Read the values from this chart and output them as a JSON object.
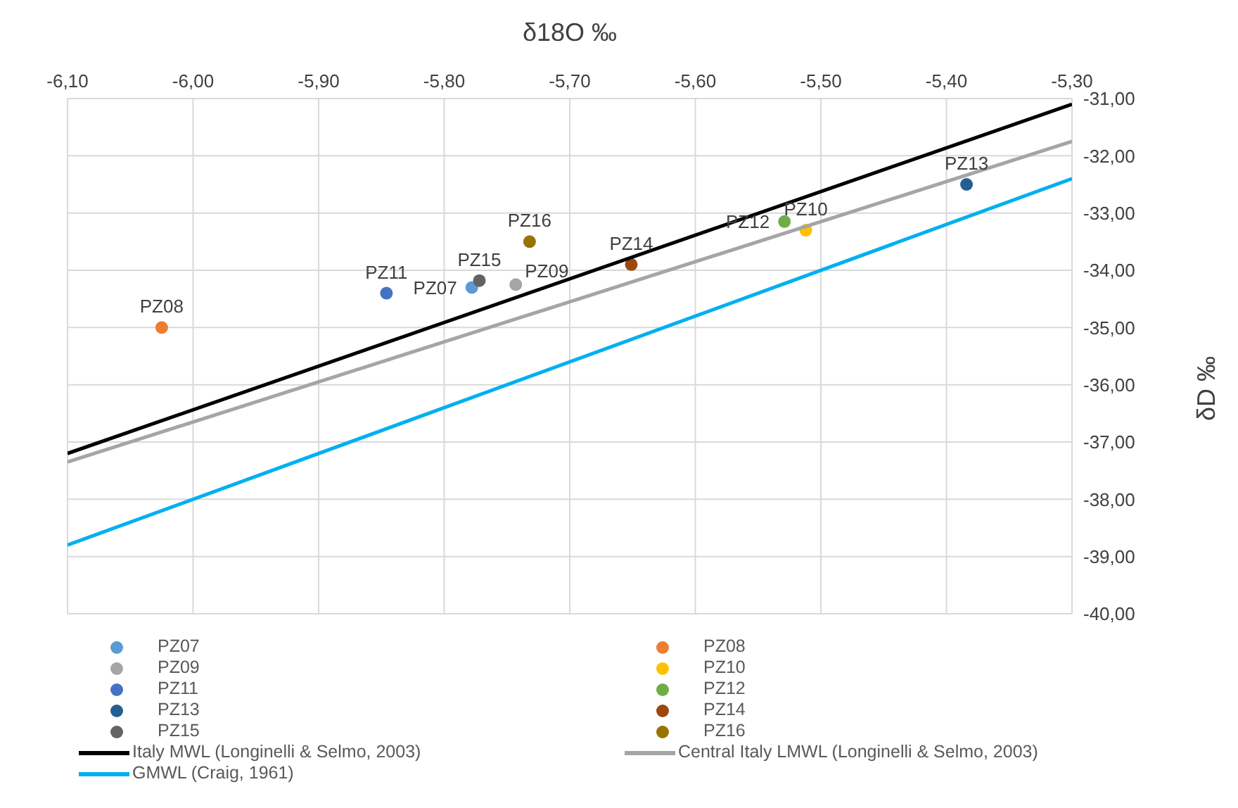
{
  "chart_data": {
    "type": "scatter",
    "xlabel": "δ18O ‰",
    "ylabel": "δD ‰",
    "xlim": [
      -6.1,
      -5.3
    ],
    "xticks": [
      {
        "value": -6.1,
        "label": "-6,10"
      },
      {
        "value": -6.0,
        "label": "-6,00"
      },
      {
        "value": -5.9,
        "label": "-5,90"
      },
      {
        "value": -5.8,
        "label": "-5,80"
      },
      {
        "value": -5.7,
        "label": "-5,70"
      },
      {
        "value": -5.6,
        "label": "-5,60"
      },
      {
        "value": -5.5,
        "label": "-5,50"
      },
      {
        "value": -5.4,
        "label": "-5,40"
      },
      {
        "value": -5.3,
        "label": "-5,30"
      }
    ],
    "ylim": [
      -40,
      -31
    ],
    "yticks": [
      {
        "value": -40,
        "label": "-40,00"
      },
      {
        "value": -39,
        "label": "-39,00"
      },
      {
        "value": -38,
        "label": "-38,00"
      },
      {
        "value": -37,
        "label": "-37,00"
      },
      {
        "value": -36,
        "label": "-36,00"
      },
      {
        "value": -35,
        "label": "-35,00"
      },
      {
        "value": -34,
        "label": "-34,00"
      },
      {
        "value": -33,
        "label": "-33,00"
      },
      {
        "value": -32,
        "label": "-32,00"
      },
      {
        "value": -31,
        "label": "-31,00"
      }
    ],
    "grid": true,
    "legend": "bottom",
    "marker": "circle",
    "series": [
      {
        "name": "PZ07",
        "color": "#5b9bd5",
        "x": [
          -5.778
        ],
        "values": [
          -34.3
        ]
      },
      {
        "name": "PZ08",
        "color": "#ed7d31",
        "x": [
          -6.025
        ],
        "values": [
          -35.0
        ]
      },
      {
        "name": "PZ09",
        "color": "#a5a5a5",
        "x": [
          -5.743
        ],
        "values": [
          -34.25
        ]
      },
      {
        "name": "PZ10",
        "color": "#ffc000",
        "x": [
          -5.512
        ],
        "values": [
          -33.3
        ]
      },
      {
        "name": "PZ11",
        "color": "#4472c4",
        "x": [
          -5.846
        ],
        "values": [
          -34.4
        ]
      },
      {
        "name": "PZ12",
        "color": "#70ad47",
        "x": [
          -5.529
        ],
        "values": [
          -33.15
        ]
      },
      {
        "name": "PZ13",
        "color": "#255e91",
        "x": [
          -5.384
        ],
        "values": [
          -32.5
        ]
      },
      {
        "name": "PZ14",
        "color": "#9e480e",
        "x": [
          -5.651
        ],
        "values": [
          -33.9
        ]
      },
      {
        "name": "PZ15",
        "color": "#636363",
        "x": [
          -5.772
        ],
        "values": [
          -34.18
        ]
      },
      {
        "name": "PZ16",
        "color": "#997300",
        "x": [
          -5.732
        ],
        "values": [
          -33.5
        ]
      },
      {
        "name": "Italy MWL (Longinelli & Selmo, 2003)",
        "type": "line",
        "marker": "none",
        "color": "#000000",
        "x": [
          -6.1,
          -5.3
        ],
        "values": [
          -37.2,
          -31.1
        ]
      },
      {
        "name": "Central Italy LMWL (Longinelli & Selmo, 2003)",
        "type": "line",
        "marker": "none",
        "color": "#a5a5a5",
        "x": [
          -6.1,
          -5.3
        ],
        "values": [
          -37.35,
          -31.75
        ]
      },
      {
        "name": "GMWL (Craig, 1961)",
        "type": "line",
        "marker": "none",
        "color": "#00b0f0",
        "x": [
          -6.1,
          -5.3
        ],
        "values": [
          -38.8,
          -32.4
        ]
      }
    ]
  }
}
